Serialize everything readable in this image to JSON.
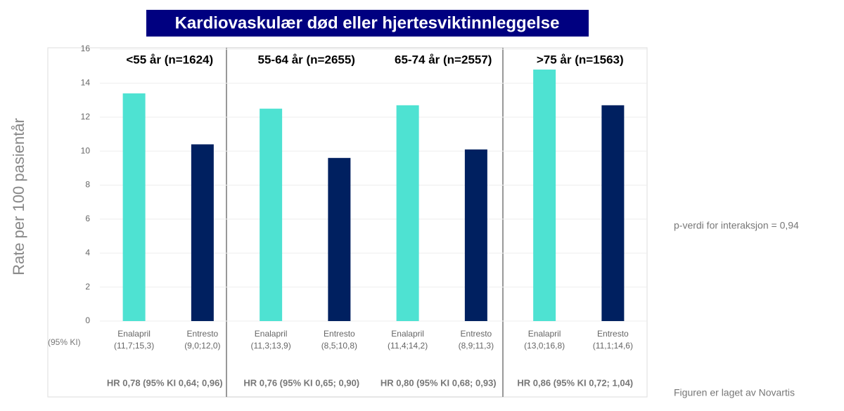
{
  "chart_data": {
    "type": "bar",
    "title": "Kardiovaskulær død eller hjertesviktinnleggelse",
    "y_label": "Rate per 100 pasientår",
    "ylim": [
      0,
      16
    ],
    "yticks": [
      0,
      2,
      4,
      6,
      8,
      10,
      12,
      14,
      16
    ],
    "grid": true,
    "groups": [
      {
        "label": "<55 år (n=1624)",
        "hr": "HR 0,78 (95% KI 0,64; 0,96)"
      },
      {
        "label": "55-64 år (n=2655)",
        "hr": "HR 0,76 (95% KI 0,65; 0,90)"
      },
      {
        "label": "65-74 år (n=2557)",
        "hr": "HR 0,80 (95% KI 0,68; 0,93)"
      },
      {
        "label": ">75 år (n=1563)",
        "hr": "HR 0,86 (95% KI 0,72; 1,04)"
      }
    ],
    "series": [
      {
        "name": "Enalapril",
        "color": "#4ee2d2",
        "values": [
          13.4,
          12.5,
          12.7,
          14.8
        ],
        "ci_labels": [
          "(11,7;15,3)",
          "(11,3;13,9)",
          "(11,4;14,2)",
          "(13,0;16,8)"
        ]
      },
      {
        "name": "Entresto",
        "color": "#002060",
        "values": [
          10.4,
          9.6,
          10.1,
          12.7
        ],
        "ci_labels": [
          "(9,0;12,0)",
          "(8,5;10,8)",
          "(8,9;11,3)",
          "(11,1;14,6)"
        ]
      }
    ],
    "ci_header": "(95% KI)",
    "note": "p-verdi for interaksjon = 0,94",
    "footer": "Figuren er laget av Novartis"
  }
}
